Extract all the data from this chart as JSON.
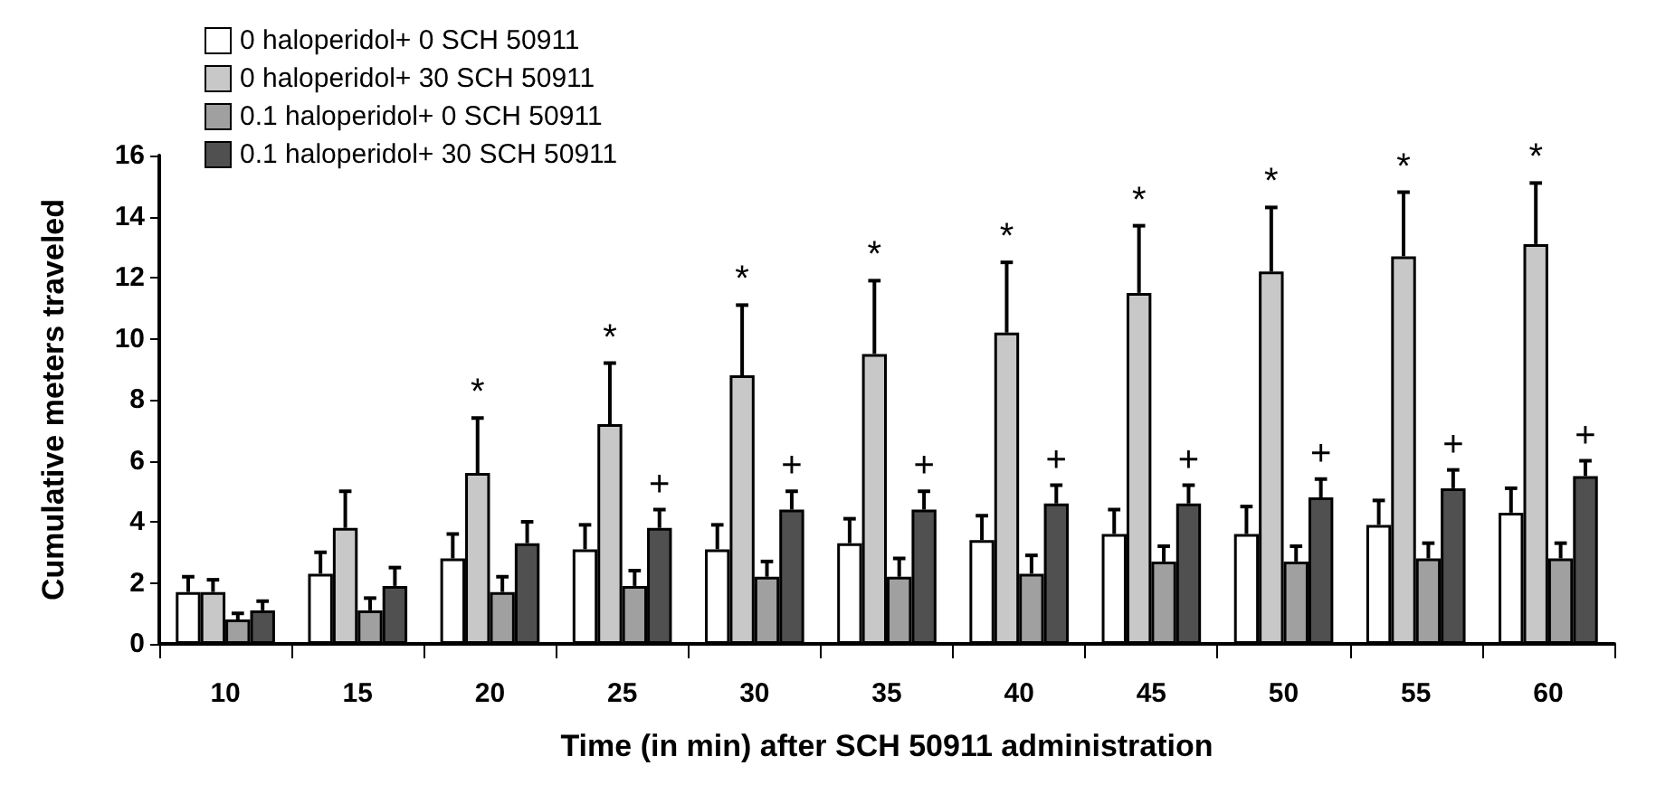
{
  "chart_data": {
    "type": "bar",
    "xlabel": "Time (in min) after SCH 50911 administration",
    "ylabel": "Cumulative meters traveled",
    "categories": [
      "10",
      "15",
      "20",
      "25",
      "30",
      "35",
      "40",
      "45",
      "50",
      "55",
      "60"
    ],
    "series": [
      {
        "name": "0 haloperidol+ 0 SCH 50911",
        "color": "#ffffff",
        "values": [
          1.7,
          2.3,
          2.8,
          3.1,
          3.1,
          3.3,
          3.4,
          3.6,
          3.6,
          3.9,
          4.3
        ],
        "errors": [
          0.5,
          0.7,
          0.8,
          0.8,
          0.8,
          0.8,
          0.8,
          0.8,
          0.9,
          0.8,
          0.8
        ]
      },
      {
        "name": "0 haloperidol+ 30 SCH 50911",
        "color": "#c8c8c8",
        "values": [
          1.7,
          3.8,
          5.6,
          7.2,
          8.8,
          9.5,
          10.2,
          11.5,
          12.2,
          12.7,
          13.1
        ],
        "errors": [
          0.4,
          1.2,
          1.8,
          2.0,
          2.3,
          2.4,
          2.3,
          2.2,
          2.1,
          2.1,
          2.0
        ]
      },
      {
        "name": "0.1 haloperidol+ 0 SCH 50911",
        "color": "#a0a0a0",
        "values": [
          0.8,
          1.1,
          1.7,
          1.9,
          2.2,
          2.2,
          2.3,
          2.7,
          2.7,
          2.8,
          2.8
        ],
        "errors": [
          0.2,
          0.4,
          0.5,
          0.5,
          0.5,
          0.6,
          0.6,
          0.5,
          0.5,
          0.5,
          0.5
        ]
      },
      {
        "name": "0.1 haloperidol+ 30 SCH 50911",
        "color": "#505050",
        "values": [
          1.1,
          1.9,
          3.3,
          3.8,
          4.4,
          4.4,
          4.6,
          4.6,
          4.8,
          5.1,
          5.5
        ],
        "errors": [
          0.3,
          0.6,
          0.7,
          0.6,
          0.6,
          0.6,
          0.6,
          0.6,
          0.6,
          0.6,
          0.5
        ]
      }
    ],
    "ylim": [
      0,
      16
    ],
    "yticks": [
      0,
      2,
      4,
      6,
      8,
      10,
      12,
      14,
      16
    ],
    "grid": false,
    "legend": "top left",
    "annotations": [
      {
        "text": "*",
        "x": "20",
        "y": 5.6
      },
      {
        "text": "*",
        "x": "25",
        "y": 7.2
      },
      {
        "text": "*",
        "x": "30",
        "y": 8.8
      },
      {
        "text": "*",
        "x": "35",
        "y": 9.5
      },
      {
        "text": "*",
        "x": "40",
        "y": 10.2
      },
      {
        "text": "*",
        "x": "45",
        "y": 11.5
      },
      {
        "text": "*",
        "x": "50",
        "y": 12.2
      },
      {
        "text": "*",
        "x": "55",
        "y": 12.7
      },
      {
        "text": "*",
        "x": "60",
        "y": 13.1
      },
      {
        "text": "+",
        "x": "25",
        "y": 3.8
      },
      {
        "text": "+",
        "x": "30",
        "y": 4.4
      },
      {
        "text": "+",
        "x": "35",
        "y": 4.4
      },
      {
        "text": "+",
        "x": "40",
        "y": 4.6
      },
      {
        "text": "+",
        "x": "45",
        "y": 4.6
      },
      {
        "text": "+",
        "x": "50",
        "y": 4.8
      },
      {
        "text": "+",
        "x": "55",
        "y": 5.1
      },
      {
        "text": "+",
        "x": "60",
        "y": 5.5
      }
    ]
  }
}
